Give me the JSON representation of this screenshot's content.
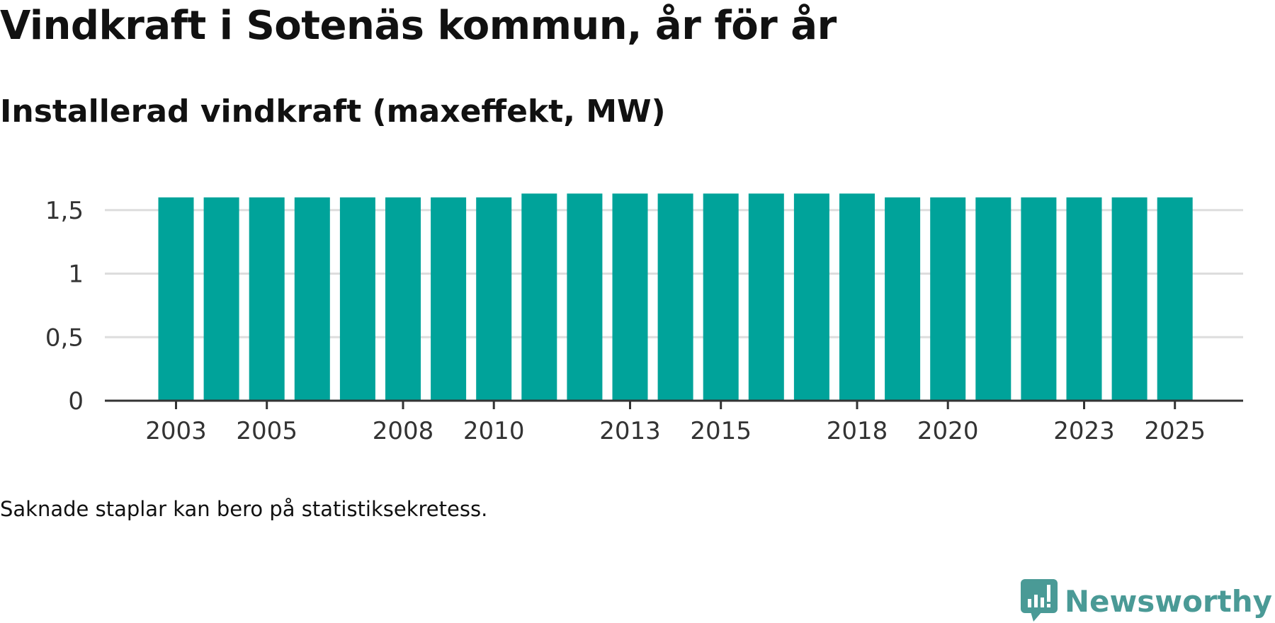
{
  "title": "Vindkraft i Sotenäs kommun, år för år",
  "subtitle": "Installerad vindkraft (maxeffekt, MW)",
  "note": "Saknade staplar kan bero på statistiksekretess.",
  "brand": {
    "name": "Newsworthy",
    "color": "#4a9a96"
  },
  "colors": {
    "bar": "#00a39a",
    "axis": "#333333",
    "grid": "#dddddd"
  },
  "chart_data": {
    "type": "bar",
    "title": "Installerad vindkraft (maxeffekt, MW)",
    "xlabel": "",
    "ylabel": "",
    "categories": [
      "2003",
      "2004",
      "2005",
      "2006",
      "2007",
      "2008",
      "2009",
      "2010",
      "2011",
      "2012",
      "2013",
      "2014",
      "2015",
      "2016",
      "2017",
      "2018",
      "2019",
      "2020",
      "2021",
      "2022",
      "2023",
      "2024",
      "2025"
    ],
    "values": [
      1.6,
      1.6,
      1.6,
      1.6,
      1.6,
      1.6,
      1.6,
      1.6,
      1.63,
      1.63,
      1.63,
      1.63,
      1.63,
      1.63,
      1.63,
      1.63,
      1.6,
      1.6,
      1.6,
      1.6,
      1.6,
      1.6,
      1.6
    ],
    "ylim": [
      0,
      1.6
    ],
    "yticks": [
      {
        "value": 0,
        "label": "0"
      },
      {
        "value": 0.5,
        "label": "0,5"
      },
      {
        "value": 1,
        "label": "1"
      },
      {
        "value": 1.5,
        "label": "1,5"
      }
    ],
    "xtick_labels": [
      "2003",
      "2005",
      "2008",
      "2010",
      "2013",
      "2015",
      "2018",
      "2020",
      "2023",
      "2025"
    ],
    "grid": true,
    "legend": "none"
  }
}
